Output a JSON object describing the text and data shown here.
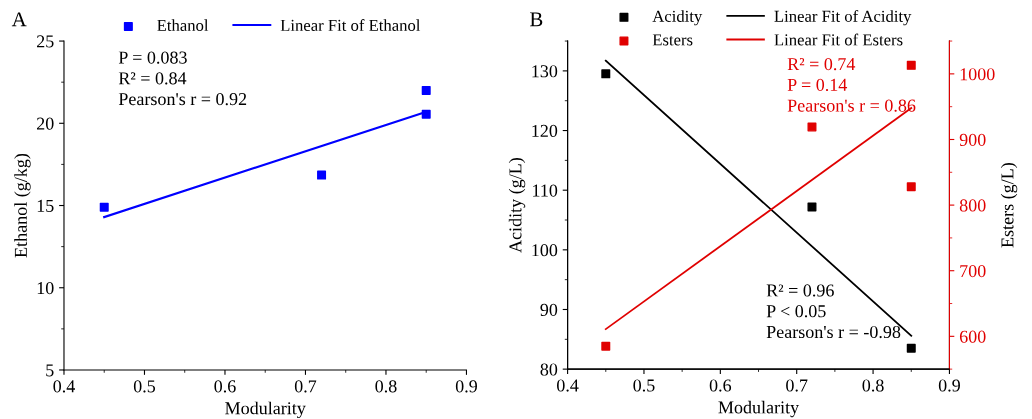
{
  "chart_data": [
    {
      "type": "scatter",
      "title": "A",
      "xlabel": "Modularity",
      "ylabel": "Ethanol (g/kg)",
      "xlim": [
        0.4,
        0.9
      ],
      "xticks": [
        0.4,
        0.5,
        0.6,
        0.7,
        0.8,
        0.9
      ],
      "ylim": [
        5,
        25
      ],
      "yticks": [
        5,
        10,
        15,
        20,
        25
      ],
      "legend": "top",
      "grid": false,
      "annotations": [
        "P = 0.083\nR² = 0.84\nPearson's r = 0.92"
      ],
      "series": [
        {
          "name": "Ethanol",
          "marker": "square",
          "color": "#0000ff",
          "x": [
            0.45,
            0.72,
            0.85,
            0.85
          ],
          "values": [
            14.9,
            16.85,
            22.0,
            20.55
          ]
        },
        {
          "name": "Linear Fit of Ethanol",
          "type": "line",
          "marker": "none",
          "line_style": "solid",
          "color": "#0000ff",
          "x": [
            0.45,
            0.85
          ],
          "values": [
            14.3,
            20.7
          ]
        }
      ]
    },
    {
      "type": "scatter",
      "title": "B",
      "xlabel": "Modularity",
      "ylabel": "Acidity (g/L)",
      "y2label": "Esters (g/L)",
      "xlim": [
        0.4,
        0.9
      ],
      "xticks": [
        0.4,
        0.5,
        0.6,
        0.7,
        0.8,
        0.9
      ],
      "ylim": [
        80,
        135
      ],
      "yticks": [
        80,
        90,
        100,
        110,
        120,
        130
      ],
      "y2lim": [
        550,
        1050
      ],
      "y2ticks": [
        600,
        700,
        800,
        900,
        1000
      ],
      "legend": "top",
      "grid": false,
      "annotations": [
        "R² = 0.74\nP = 0.14\nPearson's r = 0.86",
        "R² = 0.96\nP < 0.05\nPearson's r = -0.98"
      ],
      "series": [
        {
          "name": "Acidity",
          "marker": "square",
          "color": "#000000",
          "x": [
            0.45,
            0.72,
            0.85
          ],
          "values": [
            129.5,
            107.2,
            83.5
          ]
        },
        {
          "name": "Esters",
          "marker": "square",
          "color": "#e00000",
          "axis": "y2",
          "x": [
            0.45,
            0.72,
            0.85,
            0.85
          ],
          "values": [
            585,
            919,
            1013,
            828
          ]
        },
        {
          "name": "Linear Fit of Acidity",
          "type": "line",
          "marker": "none",
          "line_style": "solid",
          "color": "#000000",
          "x": [
            0.45,
            0.85
          ],
          "values": [
            131.7,
            85.6
          ]
        },
        {
          "name": "Linear Fit of Esters",
          "type": "line",
          "marker": "none",
          "line_style": "solid",
          "color": "#e00000",
          "axis": "y2",
          "x": [
            0.45,
            0.85
          ],
          "values": [
            611,
            948
          ]
        }
      ]
    }
  ]
}
